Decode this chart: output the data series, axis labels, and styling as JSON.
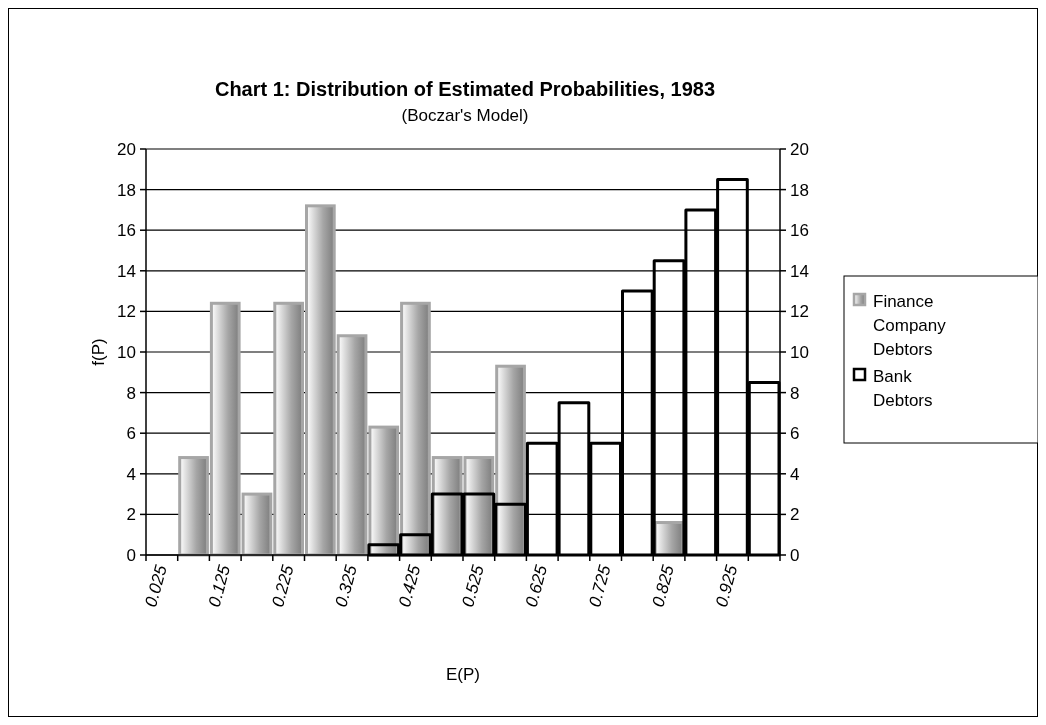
{
  "chart_data": {
    "type": "bar",
    "title": "Chart 1:  Distribution of Estimated Probabilities, 1983",
    "subtitle": "(Boczar's Model)",
    "xlabel": "E(P)",
    "ylabel": "f(P)",
    "categories": [
      "0.025",
      null,
      "0.125",
      null,
      "0.225",
      null,
      "0.325",
      null,
      "0.425",
      null,
      "0.525",
      null,
      "0.625",
      null,
      "0.725",
      null,
      "0.825",
      null,
      "0.925",
      null
    ],
    "series": [
      {
        "name": "Finance Company Debtors",
        "color": "#a6a6a6",
        "values": [
          0,
          4.8,
          12.4,
          3.0,
          12.4,
          17.2,
          10.8,
          6.3,
          12.4,
          4.8,
          4.8,
          9.3,
          0,
          0,
          0,
          0,
          1.6,
          0,
          0,
          0
        ]
      },
      {
        "name": "Bank Debtors",
        "color": "#000000",
        "values": [
          0,
          0,
          0,
          0,
          0,
          0,
          0,
          0.5,
          1.0,
          3.0,
          3.0,
          2.5,
          5.5,
          7.5,
          5.5,
          13.0,
          14.5,
          17.0,
          18.5,
          8.5
        ]
      }
    ],
    "ylim": [
      0,
      20
    ],
    "yticks": [
      0,
      2,
      4,
      6,
      8,
      10,
      12,
      14,
      16,
      18,
      20
    ],
    "y2lim": [
      0,
      20
    ],
    "y2ticks": [
      0,
      2,
      4,
      6,
      8,
      10,
      12,
      14,
      16,
      18,
      20
    ],
    "grid": "y",
    "legend": "right"
  }
}
